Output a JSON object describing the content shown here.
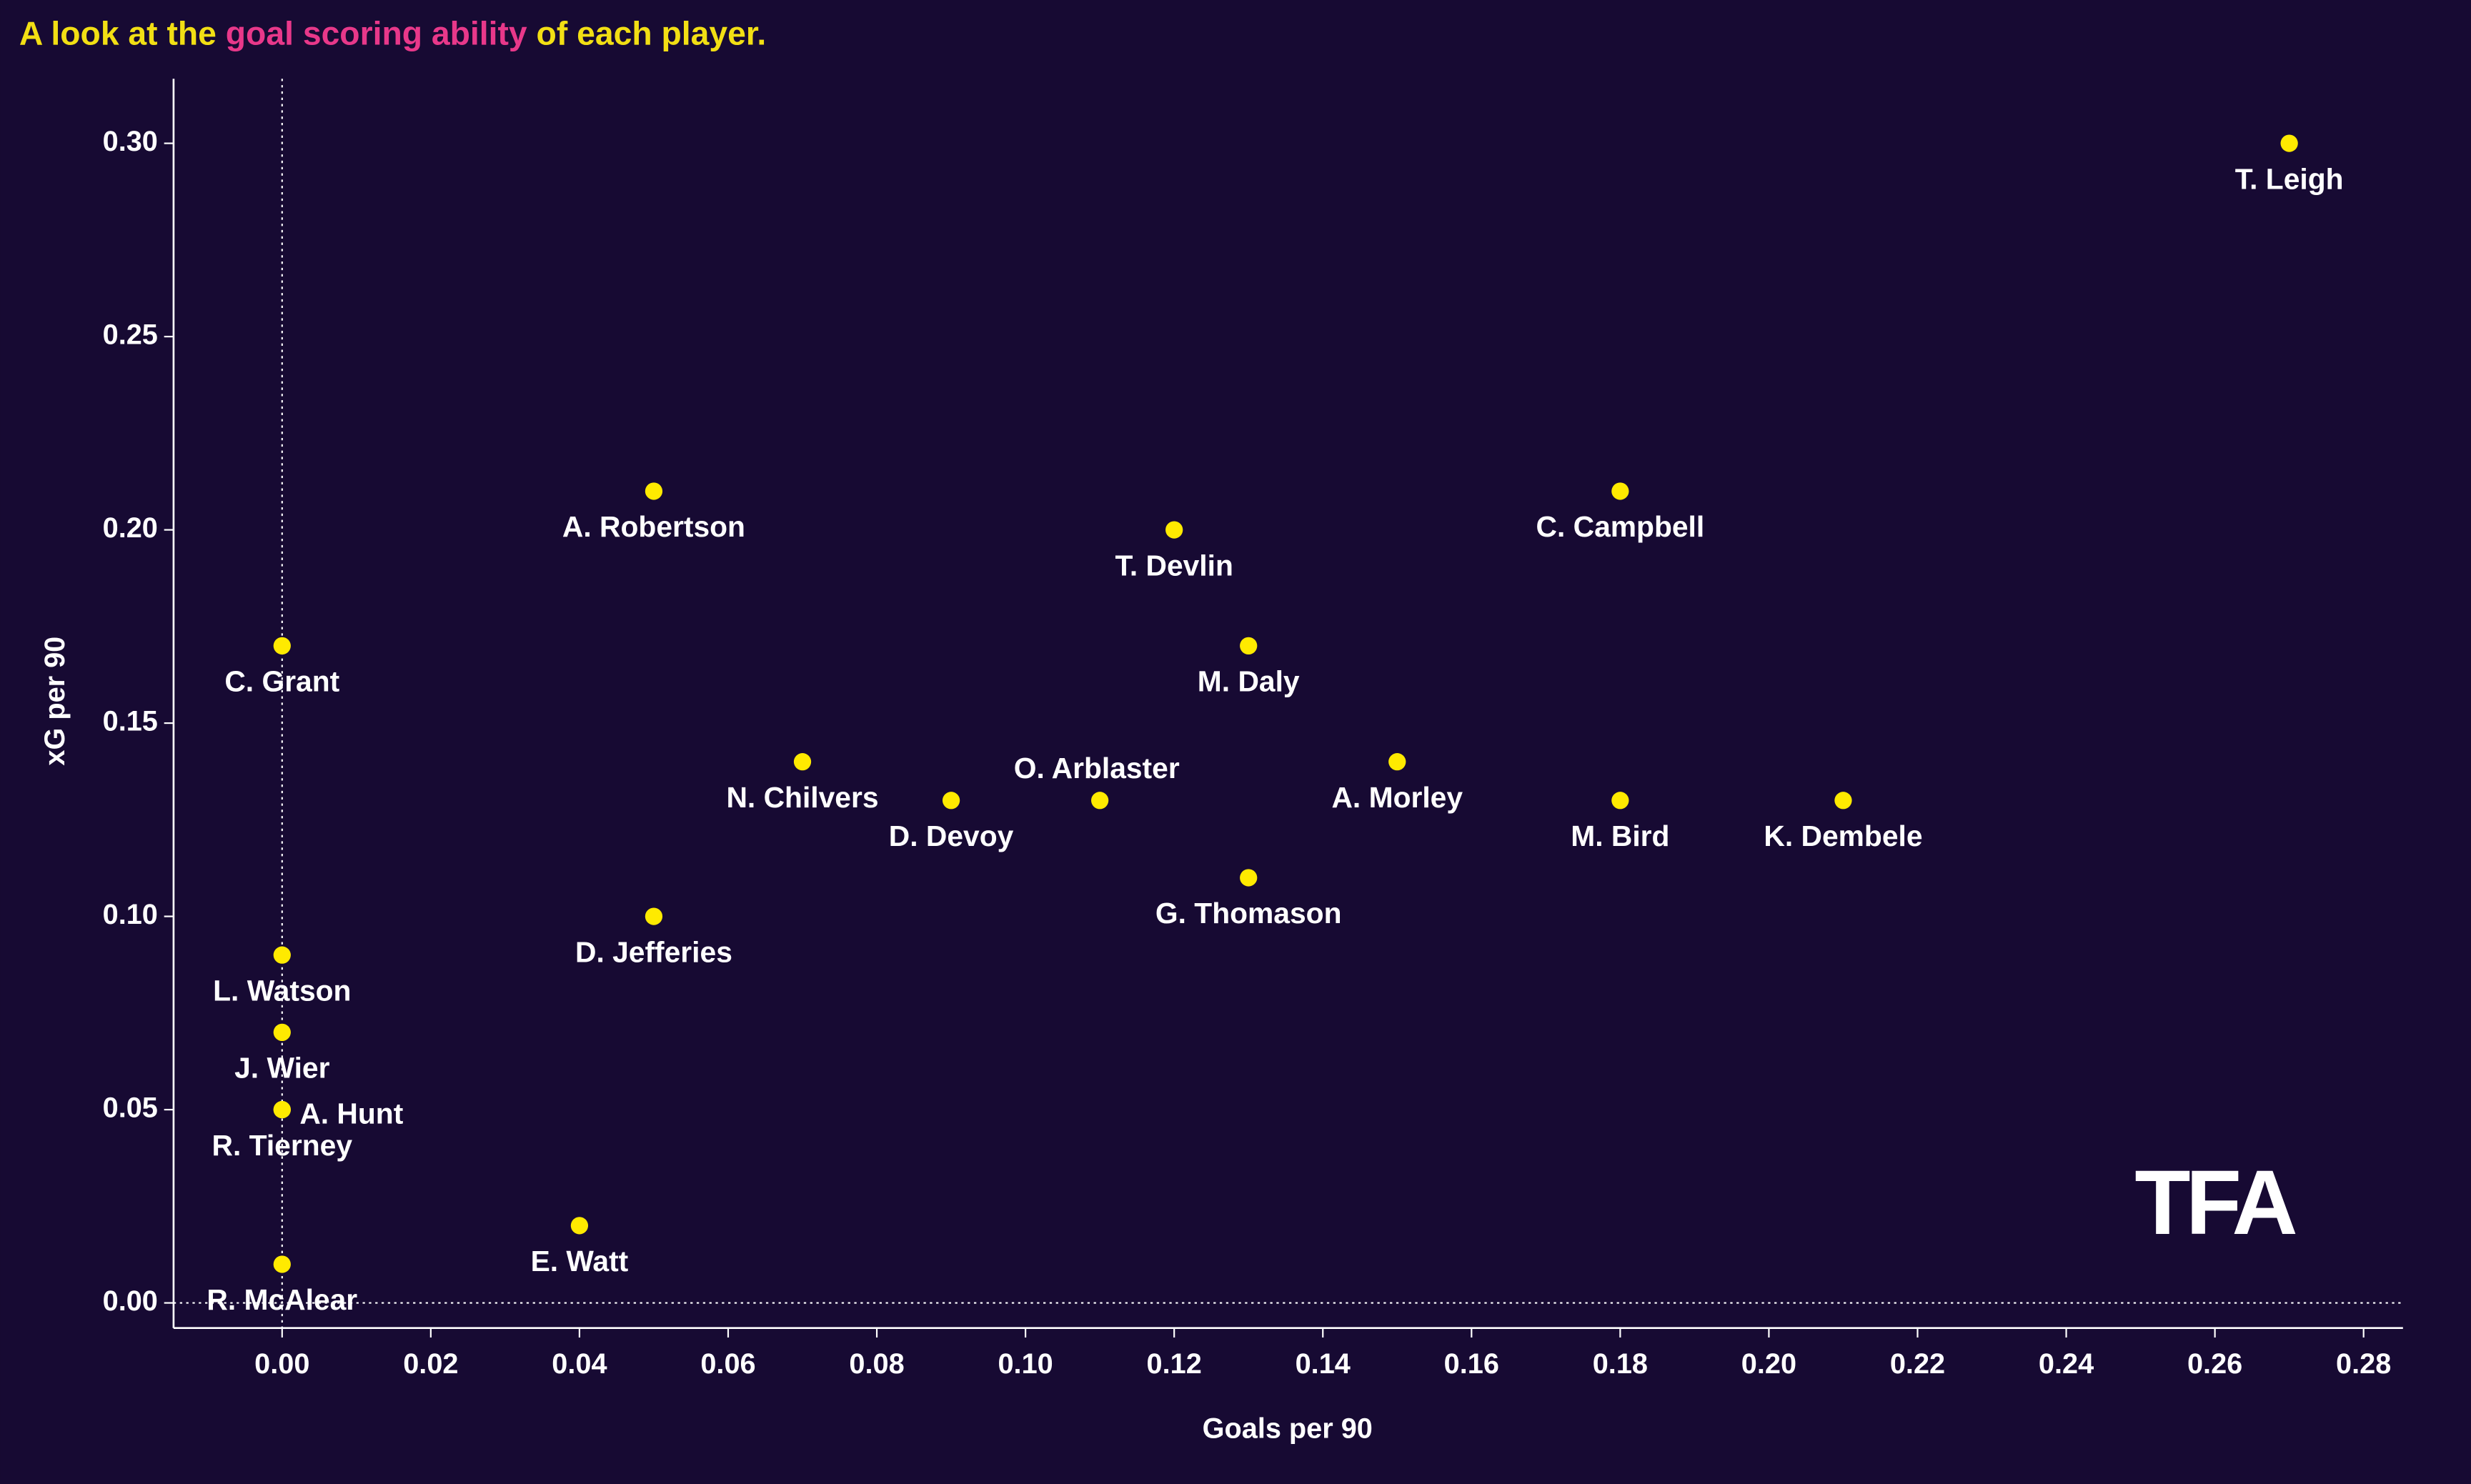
{
  "chart_data": {
    "type": "scatter",
    "title_parts": [
      "A look at the",
      "goal scoring ability",
      "of each player."
    ],
    "title_colors": [
      "#f2df14",
      "#e8388a",
      "#f2df14"
    ],
    "logo": "TFA",
    "logo_color": "#e8388a",
    "xlabel": "Goals per 90",
    "ylabel": "xG per 90",
    "color": "#ffea00",
    "labels": [
      "T. Leigh",
      "A. Robertson",
      "T. Devlin",
      "C. Campbell",
      "C. Grant",
      "M. Daly",
      "N. Chilvers",
      "D. Devoy",
      "O. Arblaster",
      "A. Morley",
      "M. Bird",
      "K. Dembele",
      "G. Thomason",
      "D. Jefferies",
      "L. Watson",
      "J. Wier",
      "A. Hunt",
      "R. Tierney",
      "E. Watt",
      "R. McAlear"
    ],
    "x": [
      0.27,
      0.05,
      0.12,
      0.18,
      0.0,
      0.13,
      0.07,
      0.09,
      0.11,
      0.15,
      0.18,
      0.21,
      0.13,
      0.05,
      0.0,
      0.0,
      0.0,
      0.0,
      0.04,
      0.0
    ],
    "values": [
      0.3,
      0.21,
      0.2,
      0.21,
      0.17,
      0.17,
      0.14,
      0.13,
      0.13,
      0.14,
      0.13,
      0.13,
      0.11,
      0.1,
      0.09,
      0.07,
      0.05,
      0.05,
      0.02,
      0.01
    ],
    "xlim": [
      -0.0146,
      0.2853
    ],
    "ylim": [
      -0.0065,
      0.3167
    ],
    "xticks": [
      {
        "value": 0,
        "label": "0.00"
      },
      {
        "value": 0.02,
        "label": "0.02"
      },
      {
        "value": 0.04,
        "label": "0.04"
      },
      {
        "value": 0.06,
        "label": "0.06"
      },
      {
        "value": 0.08,
        "label": "0.08"
      },
      {
        "value": 0.1,
        "label": "0.10"
      },
      {
        "value": 0.12,
        "label": "0.12"
      },
      {
        "value": 0.14,
        "label": "0.14"
      },
      {
        "value": 0.16,
        "label": "0.16"
      },
      {
        "value": 0.18,
        "label": "0.18"
      },
      {
        "value": 0.2,
        "label": "0.20"
      },
      {
        "value": 0.22,
        "label": "0.22"
      },
      {
        "value": 0.24,
        "label": "0.24"
      },
      {
        "value": 0.26,
        "label": "0.26"
      },
      {
        "value": 0.28,
        "label": "0.28"
      }
    ],
    "yticks": [
      {
        "value": 0,
        "label": "0.00"
      },
      {
        "value": 0.05,
        "label": "0.05"
      },
      {
        "value": 0.1,
        "label": "0.10"
      },
      {
        "value": 0.15,
        "label": "0.15"
      },
      {
        "value": 0.2,
        "label": "0.20"
      },
      {
        "value": 0.25,
        "label": "0.25"
      },
      {
        "value": 0.3,
        "label": "0.30"
      }
    ]
  }
}
